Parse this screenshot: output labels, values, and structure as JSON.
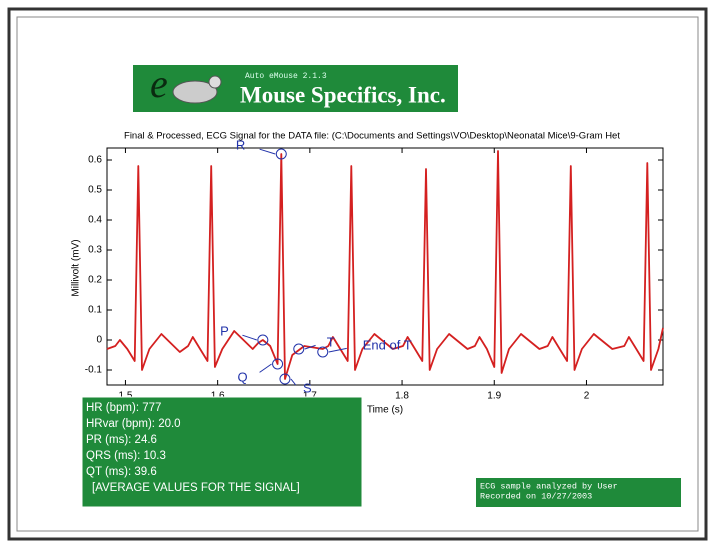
{
  "logo": {
    "letter": "e",
    "version": "Auto eMouse 2.1.3",
    "company": "Mouse Specifics, Inc."
  },
  "chart_data": {
    "type": "line",
    "title": "Final & Processed, ECG Signal for the DATA file: (C:\\Documents and Settings\\VO\\Desktop\\Neonatal Mice\\9-Gram Het",
    "x_label": "Time (s)",
    "y_label": "Millivolt (mV)",
    "xlim": [
      1.48,
      2.083
    ],
    "ylim": [
      -0.15,
      0.64
    ],
    "xticks": [
      1.5,
      1.6,
      1.7,
      1.8,
      1.9,
      2
    ],
    "yticks": [
      -0.1,
      0,
      0.1,
      0.2,
      0.3,
      0.4,
      0.5,
      0.6
    ],
    "grid": false,
    "x": [
      1.48,
      1.489,
      1.494,
      1.502,
      1.51,
      1.514,
      1.518,
      1.526,
      1.539,
      1.559,
      1.568,
      1.573,
      1.581,
      1.589,
      1.593,
      1.597,
      1.605,
      1.618,
      1.638,
      1.644,
      1.649,
      1.657,
      1.665,
      1.669,
      1.673,
      1.681,
      1.694,
      1.714,
      1.72,
      1.725,
      1.733,
      1.741,
      1.745,
      1.749,
      1.757,
      1.77,
      1.79,
      1.801,
      1.806,
      1.814,
      1.822,
      1.826,
      1.83,
      1.838,
      1.851,
      1.871,
      1.879,
      1.884,
      1.892,
      1.9,
      1.904,
      1.908,
      1.916,
      1.929,
      1.949,
      1.958,
      1.963,
      1.971,
      1.979,
      1.983,
      1.987,
      1.995,
      2.008,
      2.028,
      2.041,
      2.046,
      2.054,
      2.062,
      2.066,
      2.07,
      2.078,
      2.083
    ],
    "series": [
      {
        "color": "#d42020",
        "values": [
          -0.03,
          -0.02,
          0.0,
          -0.03,
          -0.07,
          0.58,
          -0.1,
          -0.03,
          0.02,
          -0.04,
          -0.02,
          0.01,
          -0.03,
          -0.07,
          0.58,
          -0.09,
          -0.03,
          0.03,
          -0.03,
          -0.01,
          0.0,
          -0.02,
          -0.08,
          0.62,
          -0.13,
          -0.05,
          -0.02,
          -0.03,
          -0.02,
          0.01,
          -0.03,
          -0.07,
          0.58,
          -0.1,
          -0.03,
          0.02,
          -0.03,
          -0.02,
          0.01,
          -0.03,
          -0.07,
          0.57,
          -0.1,
          -0.03,
          0.02,
          -0.03,
          -0.02,
          0.01,
          -0.03,
          -0.09,
          0.63,
          -0.11,
          -0.03,
          0.02,
          -0.03,
          -0.02,
          0.01,
          -0.03,
          -0.07,
          0.58,
          -0.1,
          -0.03,
          0.02,
          -0.03,
          -0.02,
          0.01,
          -0.03,
          -0.07,
          0.59,
          -0.1,
          -0.03,
          0.04
        ]
      }
    ],
    "annotations": [
      {
        "label": "R",
        "x": 1.669,
        "y": 0.62
      },
      {
        "label": "P",
        "x": 1.649,
        "y": 0.0
      },
      {
        "label": "Q",
        "x": 1.665,
        "y": -0.08
      },
      {
        "label": "S",
        "x": 1.673,
        "y": -0.13
      },
      {
        "label": "T",
        "x": 1.688,
        "y": -0.03
      },
      {
        "label": "End of T",
        "x": 1.714,
        "y": -0.04
      }
    ]
  },
  "results": {
    "lines": [
      "HR (bpm): 777",
      "HRvar (bpm): 20.0",
      "PR (ms): 24.6",
      "QRS (ms): 10.3",
      "QT (ms): 39.6",
      "[AVERAGE VALUES FOR THE SIGNAL]"
    ]
  },
  "footer_note": {
    "lines": [
      "ECG sample analyzed by User",
      "Recorded on 10/27/2003"
    ]
  }
}
